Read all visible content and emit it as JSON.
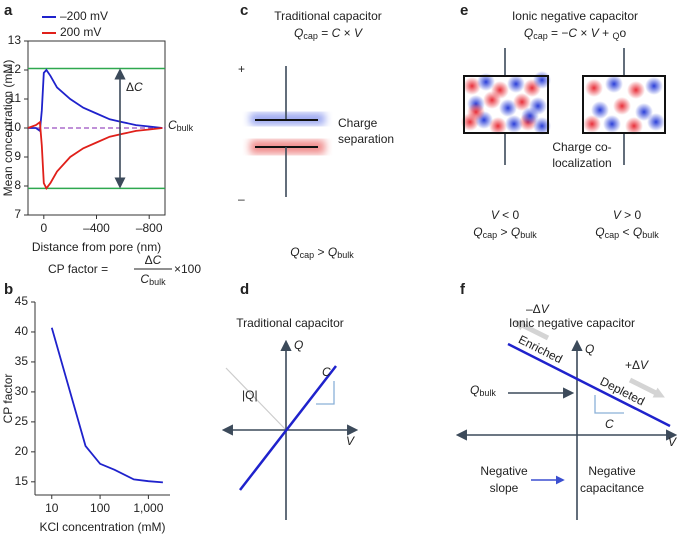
{
  "panel_letters": [
    "a",
    "b",
    "c",
    "d",
    "e",
    "f"
  ],
  "chart_data": [
    {
      "type": "line",
      "x": [
        120,
        60,
        30,
        15,
        0,
        -20,
        -50,
        -100,
        -200,
        -300,
        -400,
        -500,
        -600,
        -700,
        -800,
        -900
      ],
      "series": [
        {
          "name": "–200 mV",
          "color": "#1f22cc",
          "values": [
            10,
            10,
            9.9,
            10.6,
            11.9,
            12,
            11.8,
            11.4,
            11,
            10.7,
            10.5,
            10.3,
            10.2,
            10.1,
            10.05,
            10
          ]
        },
        {
          "name": "200 mV",
          "color": "#e0201a",
          "values": [
            10,
            10.1,
            10.2,
            9.4,
            8.1,
            7.92,
            8.1,
            8.5,
            9.0,
            9.3,
            9.5,
            9.7,
            9.8,
            9.9,
            9.95,
            10
          ]
        }
      ],
      "xlim": [
        120,
        -920
      ],
      "xticks": [
        0,
        {
          "value": -400,
          "label": "–400"
        },
        {
          "value": -800,
          "label": "–800"
        }
      ],
      "ylim": [
        7,
        13
      ],
      "yticks": [
        7,
        8,
        9,
        10,
        11,
        12,
        13
      ],
      "xlabel": "Distance from pore (nm)",
      "ylabel": "Mean concentration (mM)",
      "hlines": [
        12.05,
        7.92
      ],
      "hline_color": "#2ea84f",
      "bulk": 10,
      "bulk_color": "#9b4fc0",
      "delta_label": [
        "Δ",
        "C"
      ],
      "bulk_label": [
        "C",
        "bulk"
      ]
    },
    {
      "type": "line",
      "title": [
        "CP factor = ",
        "Δ",
        "C",
        "C",
        "bulk",
        " ×100"
      ],
      "x": [
        10,
        50,
        100,
        200,
        500,
        1000,
        2000
      ],
      "series": [
        {
          "color": "#1f22cc",
          "values": [
            40.7,
            21,
            18,
            17,
            15.4,
            15.1,
            14.9
          ]
        }
      ],
      "xscale": "log",
      "xlim": [
        4.5,
        2800
      ],
      "xticks": [
        10,
        100,
        {
          "value": 1000,
          "label": "1,000"
        }
      ],
      "ylim": [
        12.8,
        45
      ],
      "yticks": [
        15,
        20,
        25,
        30,
        35,
        40,
        45
      ],
      "xlabel": "KCl concentration (mM)",
      "ylabel": "CP factor"
    }
  ],
  "diagrams": {
    "c": {
      "title": "Traditional capacitor",
      "formula": [
        "Q",
        "cap",
        " = ",
        "C",
        " × ",
        "V"
      ],
      "plus": "+",
      "minus": "–",
      "label": [
        "Charge",
        "separation"
      ],
      "condition": [
        "Q",
        "cap",
        " > ",
        "Q",
        "bulk"
      ]
    },
    "d": {
      "title": "Traditional capacitor",
      "q": "Q",
      "v": "V",
      "abs": "|Q|",
      "c": "C"
    },
    "e": {
      "title": "Ionic negative capacitor",
      "formula": [
        "Q",
        "cap",
        " = −",
        "C",
        " × ",
        "V",
        " + ",
        "Q",
        "o"
      ],
      "label": [
        "Charge co-",
        "localization"
      ],
      "left": [
        "V",
        " < 0",
        "Q",
        "cap",
        " > ",
        "Q",
        "bulk"
      ],
      "right": [
        "V",
        " > 0",
        "Q",
        "cap",
        " < ",
        "Q",
        "bulk"
      ]
    },
    "f": {
      "title": "Ionic negative capacitor",
      "q": "Q",
      "v": "V",
      "enriched": "Enriched",
      "depleted": "Depleted",
      "minus_dv": [
        "–Δ",
        "V"
      ],
      "plus_dv": [
        "+Δ",
        "V"
      ],
      "qbulk": [
        "Q",
        "bulk"
      ],
      "c": "C",
      "left": [
        "Negative",
        "slope"
      ],
      "right": [
        "Negative",
        "capacitance"
      ]
    }
  }
}
